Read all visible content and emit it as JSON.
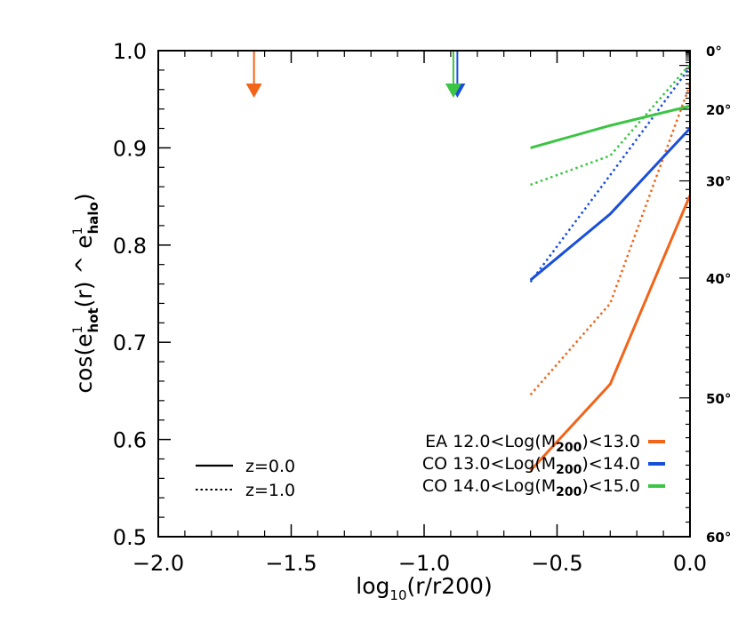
{
  "chart_data": {
    "type": "line",
    "xlabel": {
      "base": "log",
      "sub": "10",
      "rest": "(r/r200)"
    },
    "ylabel": {
      "pre": "cos(e",
      "sup1": "1",
      "sub1": "hot",
      "mid": "(r) ^ e",
      "sup2": "1",
      "sub2": "halo",
      "post": ")"
    },
    "xlim": [
      -2.0,
      0.0
    ],
    "ylim": [
      0.5,
      1.0
    ],
    "x_ticks": [
      {
        "value": -2.0,
        "label": "−2.0"
      },
      {
        "value": -1.5,
        "label": "−1.5"
      },
      {
        "value": -1.0,
        "label": "−1.0"
      },
      {
        "value": -0.5,
        "label": "−0.5"
      },
      {
        "value": 0.0,
        "label": "0.0"
      }
    ],
    "y_ticks": [
      {
        "value": 0.5,
        "label": "0.5"
      },
      {
        "value": 0.6,
        "label": "0.6"
      },
      {
        "value": 0.7,
        "label": "0.7"
      },
      {
        "value": 0.8,
        "label": "0.8"
      },
      {
        "value": 0.9,
        "label": "0.9"
      },
      {
        "value": 1.0,
        "label": "1.0"
      }
    ],
    "right_axis": {
      "ticks": [
        {
          "angle": 0,
          "label": "0°"
        },
        {
          "angle": 20,
          "label": "20°"
        },
        {
          "angle": 30,
          "label": "30°"
        },
        {
          "angle": 40,
          "label": "40°"
        },
        {
          "angle": 50,
          "label": "50°"
        },
        {
          "angle": 60,
          "label": "60°"
        }
      ]
    },
    "series": [
      {
        "group": "EA",
        "color": "#f26419",
        "style": "solid",
        "x": [
          -0.6,
          -0.3,
          0.0
        ],
        "y": [
          0.568,
          0.657,
          0.851
        ]
      },
      {
        "group": "EA",
        "color": "#f26419",
        "style": "dotted",
        "x": [
          -0.6,
          -0.3,
          0.0
        ],
        "y": [
          0.646,
          0.74,
          0.965
        ]
      },
      {
        "group": "CO13",
        "color": "#1a4fdb",
        "style": "solid",
        "x": [
          -0.6,
          -0.3,
          0.0
        ],
        "y": [
          0.764,
          0.832,
          0.92
        ]
      },
      {
        "group": "CO13",
        "color": "#1a4fdb",
        "style": "dotted",
        "x": [
          -0.6,
          -0.3,
          0.0
        ],
        "y": [
          0.762,
          0.872,
          0.983
        ]
      },
      {
        "group": "CO14",
        "color": "#3cc444",
        "style": "solid",
        "x": [
          -0.6,
          -0.3,
          0.0
        ],
        "y": [
          0.9,
          0.923,
          0.943
        ]
      },
      {
        "group": "CO14",
        "color": "#3cc444",
        "style": "dotted",
        "x": [
          -0.6,
          -0.3,
          0.0
        ],
        "y": [
          0.862,
          0.892,
          0.986
        ]
      }
    ],
    "arrows": [
      {
        "x": -1.64,
        "color": "#f26419"
      },
      {
        "x": -0.875,
        "color": "#1a4fdb"
      },
      {
        "x": -0.89,
        "color": "#3cc444"
      }
    ],
    "legend_style": [
      {
        "label": "z=0.0",
        "style": "solid"
      },
      {
        "label": "z=1.0",
        "style": "dotted"
      }
    ],
    "legend_mass": [
      {
        "prefix": "EA  12.0<Log(M",
        "sub": "200",
        "suffix": ")<13.0",
        "color": "#f26419"
      },
      {
        "prefix": "CO  13.0<Log(M",
        "sub": "200",
        "suffix": ")<14.0",
        "color": "#1a4fdb"
      },
      {
        "prefix": "CO  14.0<Log(M",
        "sub": "200",
        "suffix": ")<15.0",
        "color": "#3cc444"
      }
    ]
  }
}
